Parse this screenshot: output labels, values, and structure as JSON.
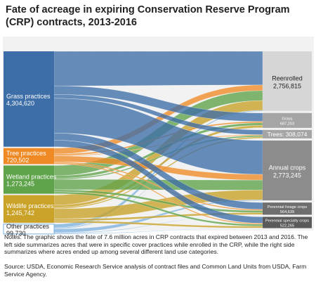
{
  "title": "Fate of acreage in expiring Conservation Reserve Program (CRP) contracts, 2013-2016",
  "notes": "Notes: The graphic shows the fate of 7.6 million acres in CRP contracts that expired between 2013 and 2016. The left side summarizes acres that were in specific cover practices while enrolled in the CRP, while the right side summarizes where acres ended up among several different land use categories.",
  "source": "Source: USDA, Economic Research Service analysis of contract files and Common Land Units from USDA, Farm Service Agency.",
  "chart_data": {
    "type": "sankey",
    "sources": [
      {
        "name": "Grass practices",
        "value_label": "4,304,620",
        "value": 4304620,
        "color": "#3d6ea8"
      },
      {
        "name": "Tree practices",
        "value_label": "720,502",
        "value": 720502,
        "color": "#f08a24"
      },
      {
        "name": "Wetland practices",
        "value_label": "1,273,245",
        "value": 1273245,
        "color": "#5fa34a"
      },
      {
        "name": "Wildlife practices",
        "value_label": "1,245,742",
        "value": 1245742,
        "color": "#c9a227"
      },
      {
        "name": "Other practices",
        "value_label": "99,730",
        "value": 99730,
        "color": "#7fb2df"
      }
    ],
    "targets": [
      {
        "name": "Reenrolled",
        "value_label": "2,756,815",
        "value": 2756815,
        "color": "#d6d6d6"
      },
      {
        "name": "Grass",
        "value_label": "687,203",
        "value": 687203,
        "color": "#a5a5a5"
      },
      {
        "name": "Trees",
        "value_label": "308,074",
        "value": 308074,
        "color": "#a5a5a5"
      },
      {
        "name": "Annual crops",
        "value_label": "2,773,245",
        "value": 2773245,
        "color": "#8c8c8c"
      },
      {
        "name": "Perennial forage crops",
        "value_label": "564,639",
        "value": 564639,
        "color": "#6e6e6e"
      },
      {
        "name": "Perennial specialty crops",
        "value_label": "522,265",
        "value": 522265,
        "color": "#5a5a5a"
      }
    ]
  }
}
